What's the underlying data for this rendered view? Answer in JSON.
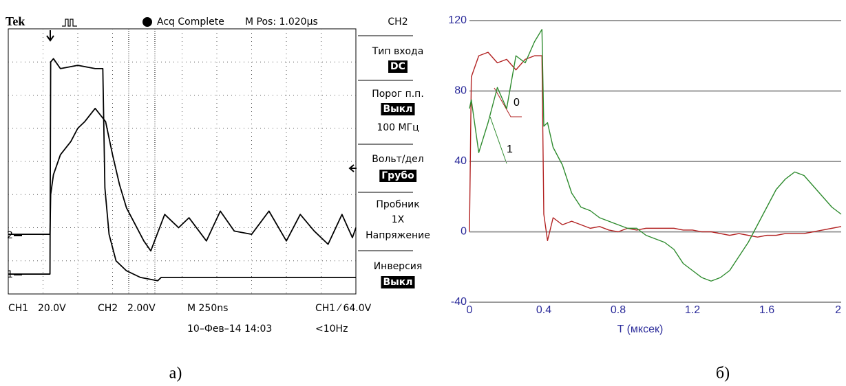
{
  "chart_data": [
    {
      "type": "line",
      "header": {
        "brand": "Tek",
        "status": "Acq Complete",
        "position": "M Pos: 1.020µs"
      },
      "menu": [
        "CH2",
        "Тип входа",
        "DC",
        "Порог п.п.",
        "Выкл",
        "100 МГц",
        "Вольт/дел",
        "Грубо",
        "Пробник",
        "1X",
        "Напряжение",
        "Инверсия",
        "Выкл"
      ],
      "footer": [
        "CH1",
        "20.0V",
        "CH2",
        "2.00V",
        "M 250ns",
        "CH1 ⁄ 64.0V",
        "10–Фев–14 14:03",
        "<10Hz"
      ],
      "xlim": [
        0,
        10
      ],
      "ylim": [
        0,
        8
      ],
      "series": [
        {
          "name": "1",
          "color": "#000000",
          "x": [
            0,
            1.2,
            1.22,
            1.3,
            1.5,
            2.0,
            2.5,
            2.72,
            2.78,
            2.9,
            3.1,
            3.4,
            3.8,
            4.3,
            4.4,
            5,
            6,
            7,
            8,
            9,
            10
          ],
          "values": [
            0.6,
            0.6,
            7.0,
            7.1,
            6.8,
            6.9,
            6.8,
            6.8,
            3.2,
            1.8,
            1.0,
            0.7,
            0.5,
            0.4,
            0.5,
            0.5,
            0.5,
            0.5,
            0.5,
            0.5,
            0.5
          ]
        },
        {
          "name": "2",
          "color": "#000000",
          "x": [
            0,
            1.2,
            1.22,
            1.3,
            1.5,
            1.8,
            2.0,
            2.2,
            2.5,
            2.8,
            3.0,
            3.2,
            3.4,
            3.6,
            3.9,
            4.1,
            4.5,
            4.9,
            5.2,
            5.7,
            6.1,
            6.5,
            7.0,
            7.5,
            8.0,
            8.4,
            8.8,
            9.2,
            9.6,
            9.9,
            10
          ],
          "values": [
            1.8,
            1.8,
            3.0,
            3.6,
            4.2,
            4.6,
            5.0,
            5.2,
            5.6,
            5.2,
            4.2,
            3.3,
            2.6,
            2.2,
            1.6,
            1.3,
            2.4,
            2.0,
            2.3,
            1.6,
            2.5,
            1.9,
            1.8,
            2.5,
            1.6,
            2.4,
            1.9,
            1.5,
            2.4,
            1.7,
            2.0
          ]
        }
      ]
    },
    {
      "type": "line",
      "xlabel": "T (мксек)",
      "x": [
        0,
        0.01,
        0.05,
        0.1,
        0.15,
        0.2,
        0.25,
        0.3,
        0.35,
        0.39,
        0.4,
        0.42,
        0.45,
        0.5,
        0.55,
        0.6,
        0.65,
        0.7,
        0.75,
        0.8,
        0.85,
        0.9,
        0.95,
        1.0,
        1.05,
        1.1,
        1.15,
        1.2,
        1.25,
        1.3,
        1.35,
        1.4,
        1.45,
        1.5,
        1.55,
        1.6,
        1.65,
        1.7,
        1.75,
        1.8,
        1.85,
        1.9,
        1.95,
        2.0
      ],
      "xlim": [
        0,
        2
      ],
      "xticks": [
        0,
        0.4,
        0.8,
        1.2,
        1.6,
        2
      ],
      "ylim": [
        -40,
        120
      ],
      "yticks": [
        -40,
        0,
        40,
        80,
        120
      ],
      "grid": true,
      "series": [
        {
          "name": "0",
          "color": "#b22222",
          "values": [
            0,
            88,
            100,
            102,
            96,
            98,
            92,
            98,
            100,
            100,
            10,
            -5,
            8,
            4,
            6,
            4,
            2,
            3,
            1,
            0,
            2,
            1,
            2,
            2,
            2,
            2,
            1,
            1,
            0,
            0,
            -1,
            -2,
            -1,
            -2,
            -3,
            -2,
            -2,
            -1,
            -1,
            -1,
            0,
            1,
            2,
            3
          ]
        },
        {
          "name": "1",
          "color": "#2e8b2e",
          "values": [
            70,
            75,
            45,
            62,
            82,
            70,
            100,
            96,
            108,
            115,
            60,
            62,
            48,
            38,
            22,
            14,
            12,
            8,
            6,
            4,
            2,
            2,
            -2,
            -4,
            -6,
            -10,
            -18,
            -22,
            -26,
            -28,
            -26,
            -22,
            -14,
            -6,
            4,
            14,
            24,
            30,
            34,
            32,
            26,
            20,
            14,
            10
          ]
        }
      ]
    }
  ],
  "captions": [
    "а)",
    "б)"
  ]
}
